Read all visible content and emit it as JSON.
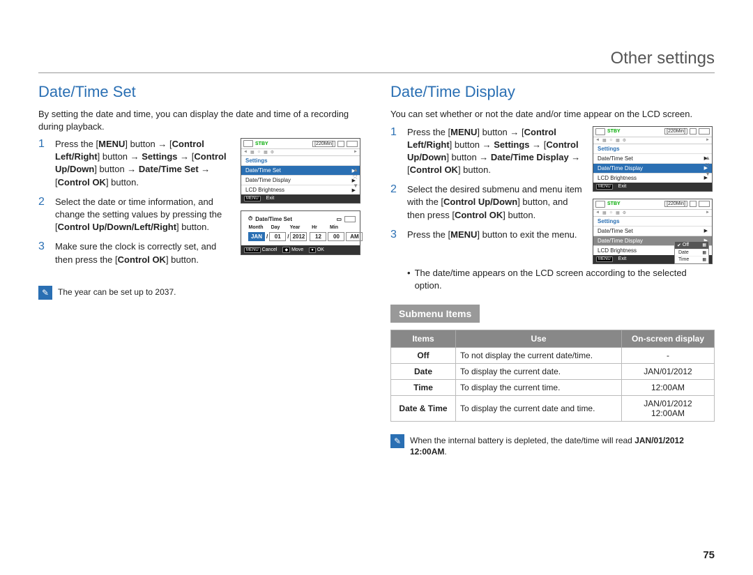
{
  "header": {
    "title": "Other settings"
  },
  "pageNumber": "75",
  "left": {
    "title": "Date/Time Set",
    "intro": "By setting the date and time, you can display the date and time of a recording during playback.",
    "steps": [
      {
        "num": "1",
        "html": "Press the [<b>MENU</b>] button → [<b>Control Left/Right</b>] button → <b>Settings</b> → [<b>Control Up/Down</b>] button → <b>Date/Time Set</b> → [<b>Control OK</b>] button."
      },
      {
        "num": "2",
        "html": "Select the date or time information, and change the setting values by pressing the [<b>Control Up/Down/Left/Right</b>] button."
      },
      {
        "num": "3",
        "html": "Make sure the clock is correctly set, and then press the [<b>Control OK</b>] button."
      }
    ],
    "note": "The year can be set up to 2037.",
    "screen1": {
      "stby": "STBY",
      "remaining": "[220Min]",
      "settings": "Settings",
      "items": [
        "Date/Time Set",
        "Date/Time Display",
        "LCD Brightness"
      ],
      "highlightIndex": 0,
      "exit": "Exit",
      "menuKey": "MENU"
    },
    "screen2": {
      "title": "Date/Time Set",
      "labels": [
        "Month",
        "Day",
        "Year",
        "Hr",
        "Min"
      ],
      "values": [
        "JAN",
        "01",
        "2012",
        "12",
        "00",
        "AM"
      ],
      "bottom": [
        {
          "key": "MENU",
          "label": "Cancel"
        },
        {
          "key": "◆",
          "label": "Move"
        },
        {
          "key": "●",
          "label": "OK"
        }
      ]
    }
  },
  "right": {
    "title": "Date/Time Display",
    "intro": "You can set whether or not the date and/or time appear on the LCD screen.",
    "steps": [
      {
        "num": "1",
        "html": "Press the [<b>MENU</b>] button → [<b>Control Left/Right</b>] button → <b>Settings</b> → [<b>Control Up/Down</b>] button → <b>Date/Time Display</b> → [<b>Control OK</b>] button."
      },
      {
        "num": "2",
        "html": "Select the desired submenu and menu item with the [<b>Control Up/Down</b>] button, and then press [<b>Control OK</b>] button."
      },
      {
        "num": "3",
        "html": "Press the [<b>MENU</b>] button to exit the menu."
      }
    ],
    "bullet": "The date/time appears on the LCD screen according to the selected option.",
    "screen1": {
      "stby": "STBY",
      "remaining": "[220Min]",
      "settings": "Settings",
      "items": [
        "Date/Time Set",
        "Date/Time Display",
        "LCD Brightness"
      ],
      "highlightIndex": 1,
      "exit": "Exit",
      "menuKey": "MENU"
    },
    "screen2": {
      "stby": "STBY",
      "remaining": "[220Min]",
      "settings": "Settings",
      "items": [
        "Date/Time Set",
        "Date/Time Display",
        "LCD Brightness"
      ],
      "highlightGreyIndex": 1,
      "popup": {
        "items": [
          "Off",
          "Date",
          "Time"
        ],
        "selectedIndex": 0
      },
      "exit": "Exit",
      "menuKey": "MENU"
    },
    "submenuTitle": "Submenu Items",
    "table": {
      "headers": [
        "Items",
        "Use",
        "On-screen display"
      ],
      "rows": [
        [
          "Off",
          "To not display the current date/time.",
          "-"
        ],
        [
          "Date",
          "To display the current date.",
          "JAN/01/2012"
        ],
        [
          "Time",
          "To display the current time.",
          "12:00AM"
        ],
        [
          "Date & Time",
          "To display the current date and time.",
          "JAN/01/2012\n12:00AM"
        ]
      ]
    },
    "note": "When the internal battery is depleted, the date/time will read <b>JAN/01/2012 12:00AM</b>."
  }
}
